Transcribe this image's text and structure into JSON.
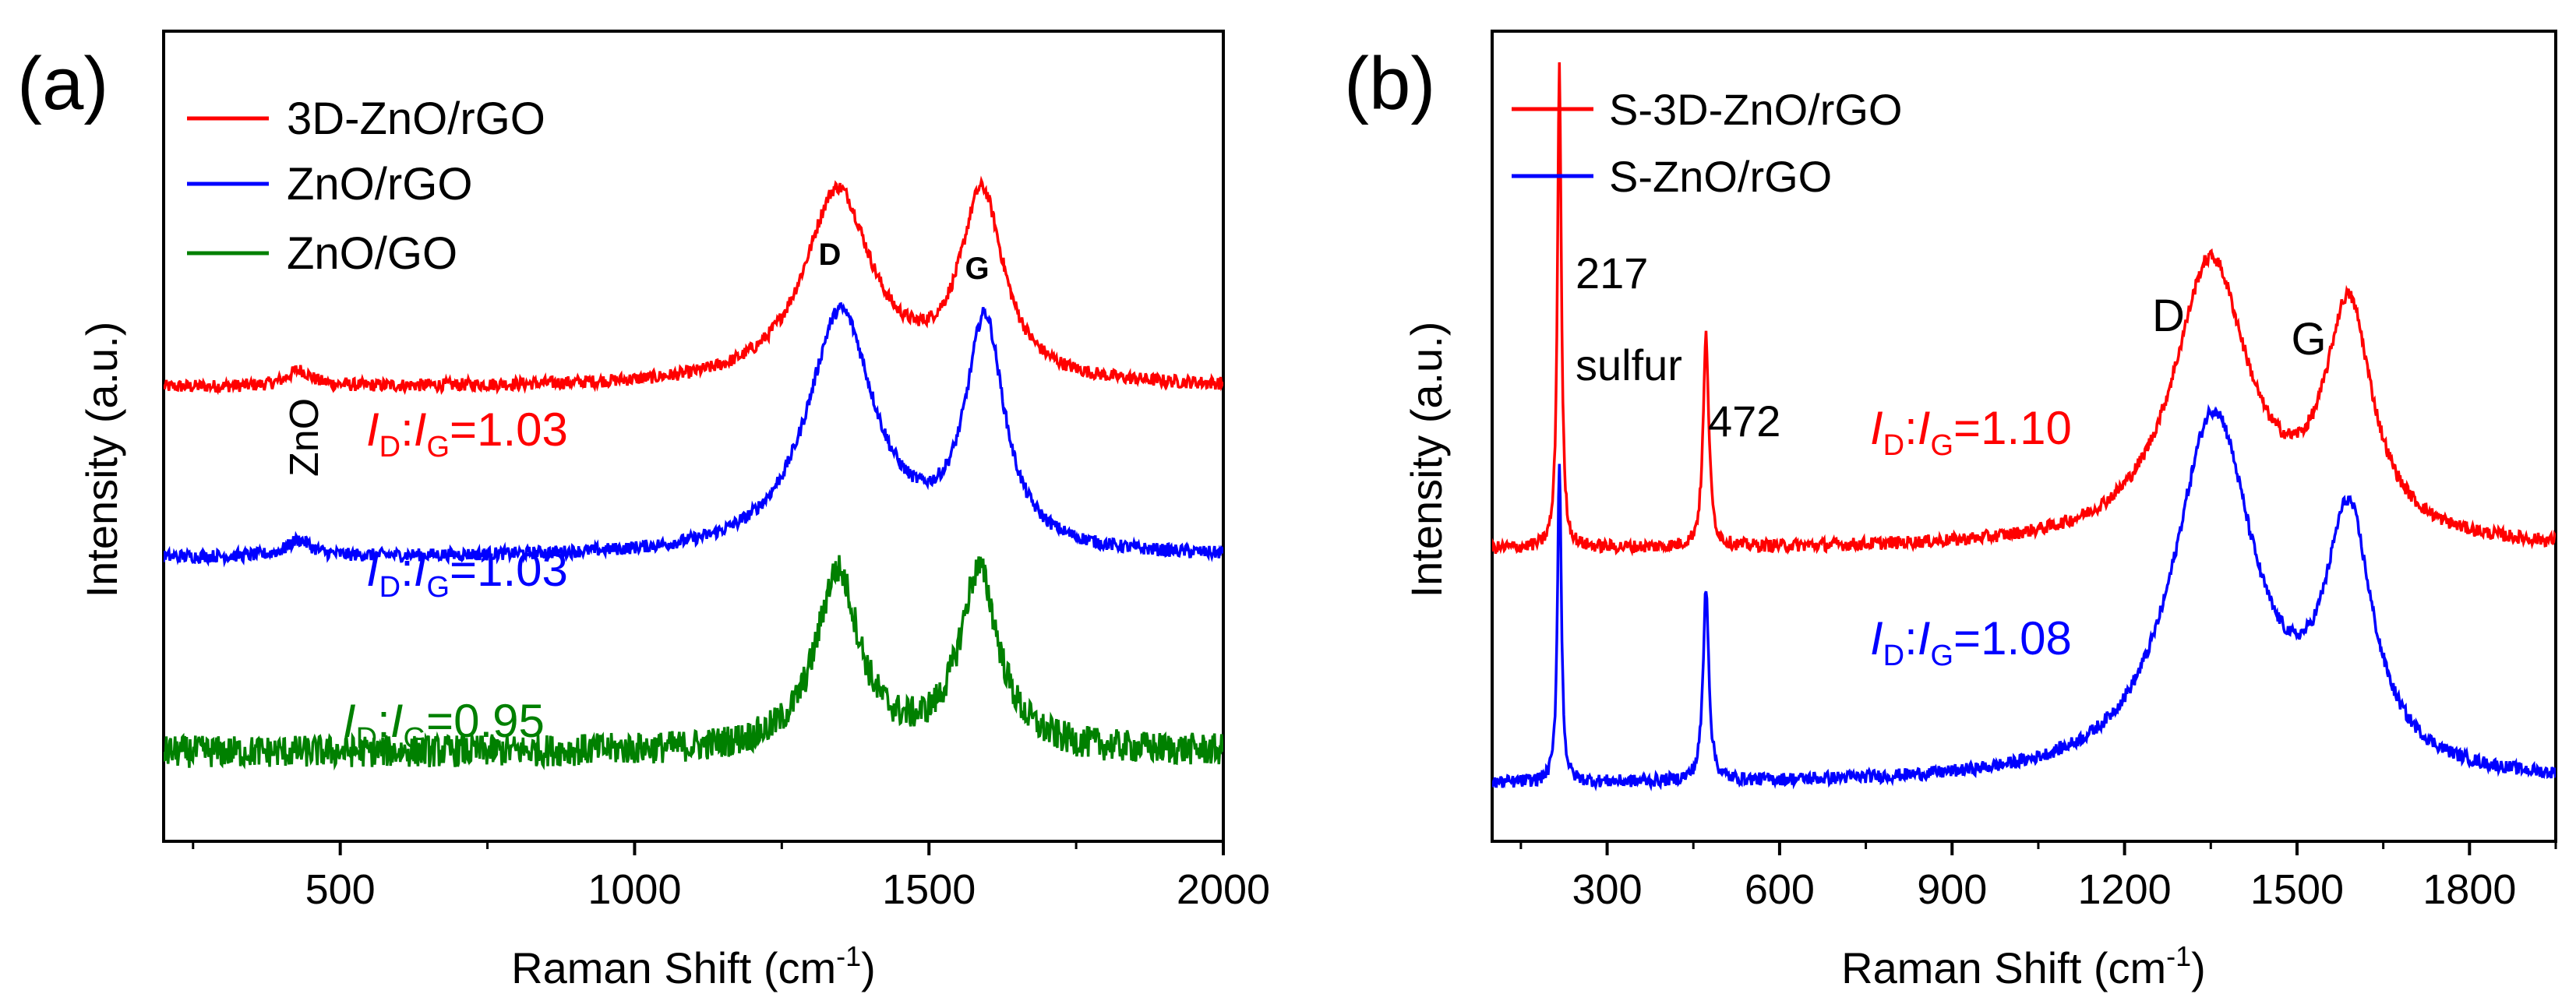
{
  "chart_data": [
    {
      "type": "line",
      "panel_label": "(a)",
      "title": "",
      "xlabel": "Raman Shift (cm",
      "xlabel_sup": "-1",
      "xlabel_end": ")",
      "ylabel": "Intensity (a.u.)",
      "xlim": [
        200,
        2000
      ],
      "ylim": [
        0,
        1
      ],
      "xticks": [
        500,
        1000,
        1500,
        2000
      ],
      "xtick_labels": [
        "500",
        "1000",
        "1500",
        "2000"
      ],
      "legend": [
        "3D-ZnO/rGO",
        "ZnO/rGO",
        "ZnO/GO"
      ],
      "series": [
        {
          "name": "3D-ZnO/rGO",
          "color": "#ff0000",
          "baseline": 0.56,
          "peaks": [
            {
              "x": 1345,
              "h": 0.24,
              "w": 70
            },
            {
              "x": 1590,
              "h": 0.23,
              "w": 45
            },
            {
              "x": 430,
              "h": 0.02,
              "w": 25
            }
          ],
          "noise": 0.008
        },
        {
          "name": "ZnO/rGO",
          "color": "#0000ff",
          "baseline": 0.35,
          "peaks": [
            {
              "x": 1350,
              "h": 0.3,
              "w": 70
            },
            {
              "x": 1595,
              "h": 0.28,
              "w": 40
            },
            {
              "x": 430,
              "h": 0.02,
              "w": 25
            }
          ],
          "noise": 0.008
        },
        {
          "name": "ZnO/GO",
          "color": "#008000",
          "baseline": 0.11,
          "peaks": [
            {
              "x": 1345,
              "h": 0.22,
              "w": 45
            },
            {
              "x": 1585,
              "h": 0.22,
              "w": 40
            }
          ],
          "noise": 0.02
        }
      ],
      "annotations": [
        {
          "text": "ZnO",
          "color": "#000000"
        },
        {
          "text": "D",
          "color": "#000000"
        },
        {
          "text": "G",
          "color": "#000000"
        }
      ],
      "ratio_labels": [
        {
          "sub_num": "D",
          "sub_den": "G",
          "value": "=1.03",
          "color": "#ff0000"
        },
        {
          "sub_num": "D",
          "sub_den": "G",
          "value": "=1.03",
          "color": "#0000ff"
        },
        {
          "sub_num": "D",
          "sub_den": "G",
          "value": "=0.95",
          "color": "#008000"
        }
      ]
    },
    {
      "type": "line",
      "panel_label": "(b)",
      "title": "",
      "xlabel": "Raman Shift (cm",
      "xlabel_sup": "-1",
      "xlabel_end": ")",
      "ylabel": "Intensity (a.u.)",
      "xlim": [
        100,
        1950
      ],
      "ylim": [
        0,
        1
      ],
      "xticks": [
        300,
        600,
        900,
        1200,
        1500,
        1800
      ],
      "xtick_labels": [
        "300",
        "600",
        "900",
        "1200",
        "1500",
        "1800"
      ],
      "legend": [
        "S-3D-ZnO/rGO",
        "S-ZnO/rGO"
      ],
      "series": [
        {
          "name": "S-3D-ZnO/rGO",
          "color": "#ff0000",
          "baseline": 0.36,
          "peaks": [
            {
              "x": 217,
              "h": 0.6,
              "w": 4
            },
            {
              "x": 472,
              "h": 0.26,
              "w": 6
            },
            {
              "x": 1350,
              "h": 0.35,
              "w": 80
            },
            {
              "x": 1590,
              "h": 0.28,
              "w": 50
            }
          ],
          "noise": 0.008
        },
        {
          "name": "S-ZnO/rGO",
          "color": "#0000ff",
          "baseline": 0.07,
          "peaks": [
            {
              "x": 217,
              "h": 0.4,
              "w": 4
            },
            {
              "x": 472,
              "h": 0.24,
              "w": 6
            },
            {
              "x": 1355,
              "h": 0.45,
              "w": 85
            },
            {
              "x": 1590,
              "h": 0.3,
              "w": 50
            }
          ],
          "noise": 0.008
        }
      ],
      "annotations": [
        {
          "text": "217",
          "color": "#000000"
        },
        {
          "text": "sulfur",
          "color": "#000000"
        },
        {
          "text": "472",
          "color": "#000000"
        },
        {
          "text": "D",
          "color": "#000000"
        },
        {
          "text": "G",
          "color": "#000000"
        }
      ],
      "ratio_labels": [
        {
          "sub_num": "D",
          "sub_den": "G",
          "value": "=1.10",
          "color": "#ff0000"
        },
        {
          "sub_num": "D",
          "sub_den": "G",
          "value": "=1.08",
          "color": "#0000ff"
        }
      ]
    }
  ]
}
